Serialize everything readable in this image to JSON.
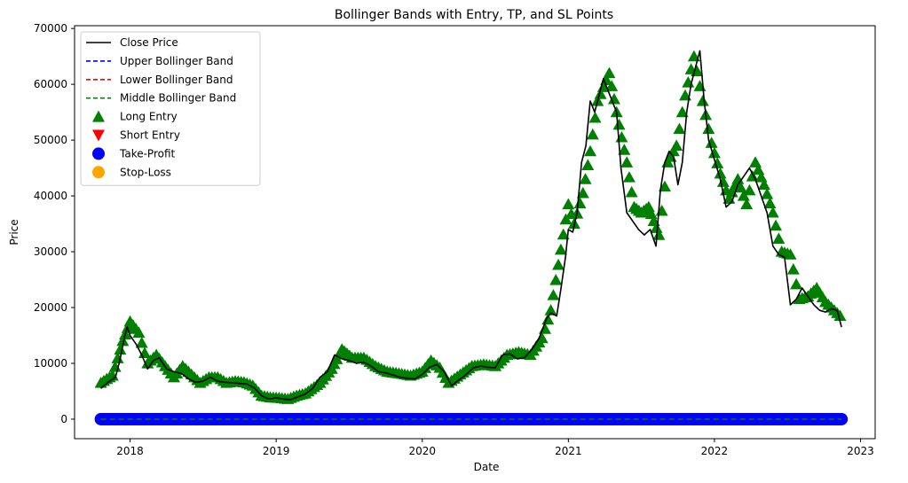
{
  "chart_data": {
    "type": "line",
    "title": "Bollinger Bands with Entry, TP, and SL Points",
    "xlabel": "Date",
    "ylabel": "Price",
    "xlim": [
      2017.62,
      2023.1
    ],
    "ylim": [
      -3500,
      70500
    ],
    "x_ticks": [
      {
        "value": 2018,
        "label": "2018"
      },
      {
        "value": 2019,
        "label": "2019"
      },
      {
        "value": 2020,
        "label": "2020"
      },
      {
        "value": 2021,
        "label": "2021"
      },
      {
        "value": 2022,
        "label": "2022"
      },
      {
        "value": 2023,
        "label": "2023"
      }
    ],
    "y_ticks": [
      {
        "value": 0,
        "label": "0"
      },
      {
        "value": 10000,
        "label": "10000"
      },
      {
        "value": 20000,
        "label": "20000"
      },
      {
        "value": 30000,
        "label": "30000"
      },
      {
        "value": 40000,
        "label": "40000"
      },
      {
        "value": 50000,
        "label": "50000"
      },
      {
        "value": 60000,
        "label": "60000"
      },
      {
        "value": 70000,
        "label": "70000"
      }
    ],
    "grid": false,
    "legend_position": "top-left",
    "legend": [
      {
        "label": "Close Price",
        "kind": "line",
        "color": "#000000",
        "dash": "solid"
      },
      {
        "label": "Upper Bollinger Band",
        "kind": "line",
        "color": "#0000ff",
        "dash": "dashed"
      },
      {
        "label": "Lower Bollinger Band",
        "kind": "line",
        "color": "#ff0000",
        "dash": "dashed"
      },
      {
        "label": "Middle Bollinger Band",
        "kind": "line",
        "color": "#008000",
        "dash": "dashed"
      },
      {
        "label": "Long Entry",
        "kind": "marker",
        "marker": "triangle-up",
        "color": "#008000"
      },
      {
        "label": "Short Entry",
        "kind": "marker",
        "marker": "triangle-down",
        "color": "#ff0000"
      },
      {
        "label": "Take-Profit",
        "kind": "marker",
        "marker": "circle",
        "color": "#0000ff"
      },
      {
        "label": "Stop-Loss",
        "kind": "marker",
        "marker": "circle",
        "color": "#ffa500"
      }
    ],
    "series": [
      {
        "name": "Close Price",
        "color": "#000000",
        "x": [
          2017.8,
          2017.83,
          2017.86,
          2017.9,
          2017.93,
          2017.96,
          2017.98,
          2018.0,
          2018.04,
          2018.08,
          2018.12,
          2018.16,
          2018.2,
          2018.25,
          2018.3,
          2018.35,
          2018.4,
          2018.45,
          2018.5,
          2018.55,
          2018.6,
          2018.65,
          2018.7,
          2018.75,
          2018.8,
          2018.85,
          2018.9,
          2018.95,
          2019.0,
          2019.05,
          2019.1,
          2019.15,
          2019.2,
          2019.25,
          2019.3,
          2019.35,
          2019.4,
          2019.45,
          2019.5,
          2019.55,
          2019.6,
          2019.65,
          2019.7,
          2019.75,
          2019.8,
          2019.85,
          2019.9,
          2019.95,
          2020.0,
          2020.05,
          2020.1,
          2020.15,
          2020.2,
          2020.25,
          2020.3,
          2020.35,
          2020.4,
          2020.45,
          2020.5,
          2020.55,
          2020.6,
          2020.65,
          2020.7,
          2020.75,
          2020.8,
          2020.85,
          2020.88,
          2020.92,
          2020.95,
          2020.98,
          2021.0,
          2021.03,
          2021.06,
          2021.09,
          2021.12,
          2021.15,
          2021.18,
          2021.21,
          2021.24,
          2021.27,
          2021.3,
          2021.33,
          2021.36,
          2021.4,
          2021.44,
          2021.48,
          2021.52,
          2021.56,
          2021.6,
          2021.63,
          2021.66,
          2021.69,
          2021.72,
          2021.75,
          2021.78,
          2021.81,
          2021.84,
          2021.87,
          2021.9,
          2021.93,
          2021.96,
          2022.0,
          2022.04,
          2022.08,
          2022.12,
          2022.16,
          2022.2,
          2022.24,
          2022.28,
          2022.32,
          2022.36,
          2022.4,
          2022.44,
          2022.48,
          2022.52,
          2022.56,
          2022.6,
          2022.64,
          2022.68,
          2022.72,
          2022.76,
          2022.8,
          2022.84,
          2022.87
        ],
        "values": [
          5500,
          6200,
          6800,
          7500,
          10500,
          14500,
          16500,
          15000,
          13500,
          11500,
          9000,
          10500,
          11000,
          9000,
          8500,
          8200,
          7200,
          6600,
          6800,
          7500,
          6800,
          6600,
          6500,
          6400,
          6300,
          5600,
          4200,
          3600,
          3800,
          3600,
          3500,
          4000,
          4500,
          5500,
          7500,
          8500,
          11500,
          10800,
          10500,
          10000,
          10200,
          9500,
          8500,
          8300,
          7900,
          7500,
          7300,
          7200,
          8000,
          9300,
          9800,
          8500,
          6000,
          7000,
          8000,
          9200,
          9500,
          9300,
          9200,
          11500,
          11700,
          10800,
          11000,
          12500,
          14500,
          18000,
          19000,
          18500,
          23500,
          29000,
          34000,
          33500,
          37000,
          46000,
          49000,
          57000,
          55000,
          58000,
          61000,
          59000,
          57000,
          55000,
          45000,
          37000,
          35500,
          34000,
          33000,
          34000,
          31000,
          41000,
          46000,
          48000,
          47000,
          42000,
          46000,
          55000,
          60000,
          63000,
          66000,
          57000,
          50000,
          46500,
          43000,
          38000,
          39000,
          42000,
          43500,
          45000,
          43000,
          40000,
          37000,
          31000,
          29500,
          29000,
          20500,
          21500,
          23500,
          22000,
          20500,
          19500,
          19200,
          19800,
          19500,
          16500
        ]
      },
      {
        "name": "Long Entry",
        "color": "#008000",
        "marker": "triangle-up",
        "x": [
          2017.8,
          2017.84,
          2017.88,
          2017.95,
          2018.0,
          2018.06,
          2018.12,
          2018.18,
          2018.24,
          2018.3,
          2018.36,
          2018.42,
          2018.48,
          2018.54,
          2018.6,
          2018.66,
          2018.72,
          2018.78,
          2018.84,
          2018.9,
          2018.96,
          2019.02,
          2019.08,
          2019.14,
          2019.2,
          2019.3,
          2019.38,
          2019.45,
          2019.52,
          2019.6,
          2019.68,
          2019.76,
          2019.84,
          2019.92,
          2020.0,
          2020.06,
          2020.12,
          2020.18,
          2020.26,
          2020.34,
          2020.42,
          2020.5,
          2020.58,
          2020.66,
          2020.74,
          2020.82,
          2020.88,
          2021.0,
          2021.04,
          2021.1,
          2021.15,
          2021.2,
          2021.28,
          2021.33,
          2021.4,
          2021.45,
          2021.5,
          2021.55,
          2021.62,
          2021.68,
          2021.74,
          2021.8,
          2021.86,
          2021.92,
          2021.98,
          2022.04,
          2022.1,
          2022.16,
          2022.22,
          2022.28,
          2022.34,
          2022.4,
          2022.46,
          2022.52,
          2022.58,
          2022.64,
          2022.7,
          2022.76,
          2022.82,
          2022.86
        ],
        "values": [
          6500,
          7200,
          7800,
          14000,
          17500,
          15500,
          10000,
          11500,
          9500,
          7500,
          9500,
          8000,
          6500,
          7500,
          7500,
          6500,
          6800,
          6600,
          6000,
          4200,
          3900,
          3800,
          3600,
          4200,
          4600,
          6500,
          9000,
          12500,
          11000,
          11000,
          9500,
          8500,
          8200,
          7800,
          8500,
          10500,
          9200,
          6500,
          8000,
          9500,
          9800,
          9500,
          11500,
          12000,
          11500,
          14500,
          19500,
          38500,
          35000,
          40500,
          48000,
          57000,
          62000,
          55000,
          46000,
          38000,
          37000,
          38000,
          33000,
          46000,
          49000,
          58000,
          65000,
          57000,
          49500,
          44000,
          39500,
          43000,
          38500,
          46000,
          42000,
          37000,
          30000,
          29500,
          21500,
          22000,
          23500,
          21000,
          19500,
          18500
        ]
      },
      {
        "name": "Take-Profit",
        "color": "#0000ff",
        "marker": "circle",
        "x_start": 2017.8,
        "x_end": 2022.87,
        "value": 0
      },
      {
        "name": "Middle Bollinger Band",
        "color": "#008000",
        "dash": "dashed",
        "x_start": 2017.8,
        "x_end": 2022.87,
        "value": 0
      }
    ]
  }
}
